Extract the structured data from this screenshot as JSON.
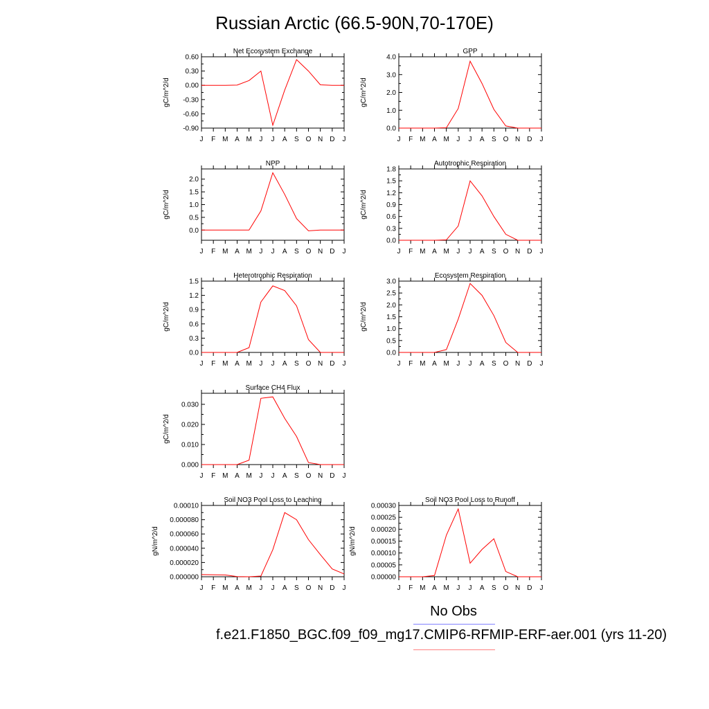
{
  "title": "Russian Arctic (66.5-90N,70-170E)",
  "legend": {
    "obs_label": "No Obs",
    "obs_color": "#8080ff",
    "model_label": "f.e21.F1850_BGC.f09_f09_mg17.CMIP6-RFMIP-ERF-aer.001 (yrs 11-20)",
    "model_color": "#ff8080"
  },
  "series_color": "#ff0000",
  "chart_data": [
    {
      "type": "line",
      "title": "Net Ecosystem Exchange",
      "ylabel": "gC/m^2/d",
      "categories": [
        "J",
        "F",
        "M",
        "A",
        "M",
        "J",
        "J",
        "A",
        "S",
        "O",
        "N",
        "D",
        "J"
      ],
      "values": [
        0.0,
        0.0,
        0.0,
        0.005,
        0.1,
        0.3,
        -0.84,
        -0.1,
        0.54,
        0.3,
        0.01,
        0.0,
        0.0
      ],
      "ylim": [
        -0.9,
        0.6
      ],
      "yticks": [
        0.6,
        0.3,
        0.0,
        -0.3,
        -0.6,
        -0.9
      ],
      "ytick_labels": [
        "0.60",
        "0.30",
        "0.00",
        "-0.30",
        "-0.60",
        "-0.90"
      ]
    },
    {
      "type": "line",
      "title": "GPP",
      "ylabel": "gC/m^2/d",
      "categories": [
        "J",
        "F",
        "M",
        "A",
        "M",
        "J",
        "J",
        "A",
        "S",
        "O",
        "N",
        "D",
        "J"
      ],
      "values": [
        0.0,
        0.0,
        0.0,
        0.0,
        0.02,
        1.1,
        3.75,
        2.5,
        1.05,
        0.12,
        0.0,
        0.0,
        0.0
      ],
      "ylim": [
        0,
        4
      ],
      "yticks": [
        4.0,
        3.0,
        2.0,
        1.0,
        0.0
      ],
      "ytick_labels": [
        "4.0",
        "3.0",
        "2.0",
        "1.0",
        "0.0"
      ]
    },
    {
      "type": "line",
      "title": "NPP",
      "ylabel": "gC/m^2/d",
      "categories": [
        "J",
        "F",
        "M",
        "A",
        "M",
        "J",
        "J",
        "A",
        "S",
        "O",
        "N",
        "D",
        "J"
      ],
      "values": [
        0.0,
        0.0,
        0.0,
        0.0,
        0.0,
        0.75,
        2.25,
        1.4,
        0.45,
        -0.03,
        0.0,
        0.0,
        0.0
      ],
      "ylim": [
        -0.4,
        2.4
      ],
      "yticks": [
        2.0,
        1.5,
        1.0,
        0.5,
        0.0
      ],
      "ytick_labels": [
        "2.0",
        "1.5",
        "1.0",
        "0.5",
        "0.0"
      ]
    },
    {
      "type": "line",
      "title": "Autotrophic Respiration",
      "ylabel": "gC/m^2/d",
      "categories": [
        "J",
        "F",
        "M",
        "A",
        "M",
        "J",
        "J",
        "A",
        "S",
        "O",
        "N",
        "D",
        "J"
      ],
      "values": [
        0.0,
        0.0,
        0.0,
        0.0,
        0.01,
        0.36,
        1.5,
        1.12,
        0.6,
        0.15,
        0.0,
        0.0,
        0.0
      ],
      "ylim": [
        0,
        1.8
      ],
      "yticks": [
        1.8,
        1.5,
        1.2,
        0.9,
        0.6,
        0.3,
        0.0
      ],
      "ytick_labels": [
        "1.8",
        "1.5",
        "1.2",
        "0.9",
        "0.6",
        "0.3",
        "0.0"
      ]
    },
    {
      "type": "line",
      "title": "Heterotrophic Respiration",
      "ylabel": "gC/m^2/d",
      "categories": [
        "J",
        "F",
        "M",
        "A",
        "M",
        "J",
        "J",
        "A",
        "S",
        "O",
        "N",
        "D",
        "J"
      ],
      "values": [
        0.0,
        0.0,
        0.0,
        0.0,
        0.1,
        1.06,
        1.4,
        1.3,
        0.98,
        0.27,
        0.0,
        0.0,
        0.0
      ],
      "ylim": [
        0,
        1.5
      ],
      "yticks": [
        1.5,
        1.2,
        0.9,
        0.6,
        0.3,
        0.0
      ],
      "ytick_labels": [
        "1.5",
        "1.2",
        "0.9",
        "0.6",
        "0.3",
        "0.0"
      ]
    },
    {
      "type": "line",
      "title": "Ecosystem Respiration",
      "ylabel": "gC/m^2/d",
      "categories": [
        "J",
        "F",
        "M",
        "A",
        "M",
        "J",
        "J",
        "A",
        "S",
        "O",
        "N",
        "D",
        "J"
      ],
      "values": [
        0.0,
        0.0,
        0.0,
        0.0,
        0.12,
        1.4,
        2.9,
        2.4,
        1.55,
        0.42,
        0.0,
        0.0,
        0.0
      ],
      "ylim": [
        0,
        3.0
      ],
      "yticks": [
        3.0,
        2.5,
        2.0,
        1.5,
        1.0,
        0.5,
        0.0
      ],
      "ytick_labels": [
        "3.0",
        "2.5",
        "2.0",
        "1.5",
        "1.0",
        "0.5",
        "0.0"
      ]
    },
    {
      "type": "line",
      "title": "Surface CH4 Flux",
      "ylabel": "gC/m^2/d",
      "categories": [
        "J",
        "F",
        "M",
        "A",
        "M",
        "J",
        "J",
        "A",
        "S",
        "O",
        "N",
        "D",
        "J"
      ],
      "values": [
        0.0,
        0.0,
        0.0,
        0.0,
        0.0022,
        0.033,
        0.0337,
        0.023,
        0.014,
        0.001,
        0.0,
        0.0,
        0.0
      ],
      "ylim": [
        0,
        0.0355
      ],
      "yticks": [
        0.03,
        0.02,
        0.01,
        0.0
      ],
      "ytick_labels": [
        "0.030",
        "0.020",
        "0.010",
        "0.000"
      ]
    },
    {
      "type": "line",
      "title": "Soil NO3 Pool Loss to Leaching",
      "ylabel": "gN/m^2/d",
      "categories": [
        "J",
        "F",
        "M",
        "A",
        "M",
        "J",
        "J",
        "A",
        "S",
        "O",
        "N",
        "D",
        "J"
      ],
      "values": [
        3e-06,
        2.8e-06,
        2.5e-06,
        3e-07,
        0.0,
        1e-06,
        3.8e-05,
        9e-05,
        8e-05,
        5.2e-05,
        3.1e-05,
        1.1e-05,
        4e-06
      ],
      "ylim": [
        0,
        0.0001
      ],
      "yticks": [
        0.0001,
        8e-05,
        6e-05,
        4e-05,
        2e-05,
        0.0
      ],
      "ytick_labels": [
        "0.00010",
        "0.000080",
        "0.000060",
        "0.000040",
        "0.000020",
        "0.000000"
      ]
    },
    {
      "type": "line",
      "title": "Soil NO3 Pool Loss to Runoff",
      "ylabel": "gN/m^2/d",
      "categories": [
        "J",
        "F",
        "M",
        "A",
        "M",
        "J",
        "J",
        "A",
        "S",
        "O",
        "N",
        "D",
        "J"
      ],
      "values": [
        0.0,
        0.0,
        0.0,
        5e-06,
        0.000175,
        0.000285,
        5.7e-05,
        0.000115,
        0.00016,
        2.2e-05,
        0.0,
        0.0,
        0.0
      ],
      "ylim": [
        0,
        0.0003
      ],
      "yticks": [
        0.0003,
        0.00025,
        0.0002,
        0.00015,
        0.0001,
        5e-05,
        0.0
      ],
      "ytick_labels": [
        "0.00030",
        "0.00025",
        "0.00020",
        "0.00015",
        "0.00010",
        "0.00005",
        "0.00000"
      ]
    }
  ]
}
